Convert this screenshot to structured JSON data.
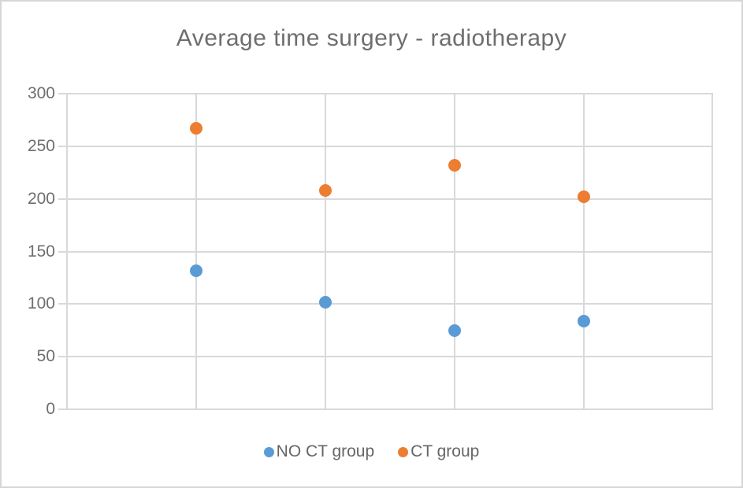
{
  "chart_data": {
    "type": "scatter",
    "title": "Average time surgery - radiotherapy",
    "xlabel": "",
    "ylabel": "",
    "x": [
      1,
      2,
      3,
      4
    ],
    "xlim": [
      0,
      5
    ],
    "x_gridlines": [
      0,
      1,
      2,
      3,
      4,
      5
    ],
    "ylim": [
      0,
      300
    ],
    "yticks": [
      300,
      250,
      200,
      150,
      100,
      50,
      0
    ],
    "grid": true,
    "legend_position": "bottom-center",
    "series": [
      {
        "name": "NO CT group",
        "color": "#5b9bd5",
        "values": [
          132,
          102,
          75,
          84
        ]
      },
      {
        "name": "CT group",
        "color": "#ed7d31",
        "values": [
          267,
          208,
          232,
          202
        ]
      }
    ],
    "colors": {
      "gridline": "#d9d9d9",
      "plot_border": "#d9d9d9",
      "title_text": "#6e6e6e",
      "axis_text": "#6e6e6e",
      "legend_text": "#666666",
      "background": "#ffffff",
      "canvas_border": "#d6d6d6"
    }
  }
}
